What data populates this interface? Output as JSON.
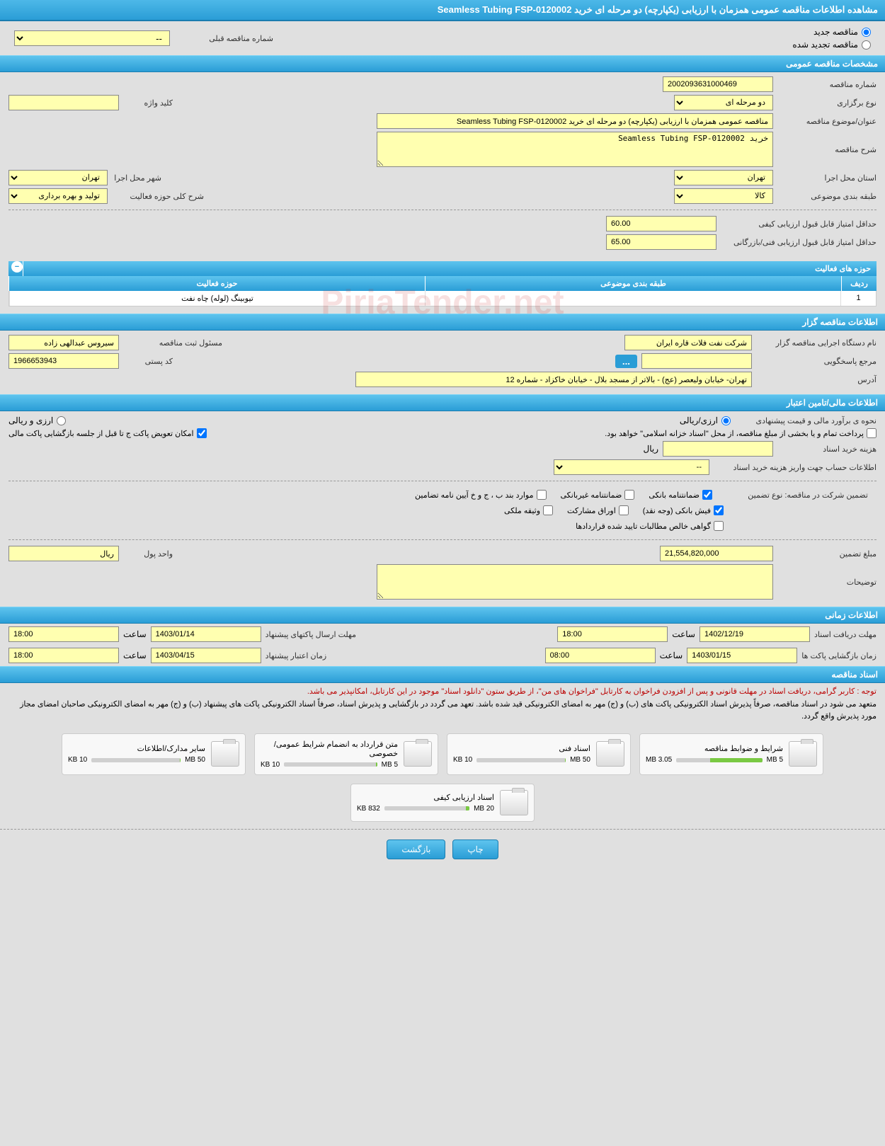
{
  "page_title": "مشاهده اطلاعات مناقصه عمومی همزمان با ارزیابی (یکپارچه) دو مرحله ای خرید Seamless Tubing FSP-0120002",
  "tender_status": {
    "new_label": "مناقصه جدید",
    "renewed_label": "مناقصه تجدید شده",
    "prev_number_label": "شماره مناقصه قبلی",
    "prev_number_value": "--"
  },
  "sections": {
    "general": "مشخصات مناقصه عمومی",
    "organizer": "اطلاعات مناقصه گزار",
    "financial": "اطلاعات مالی/تامین اعتبار",
    "timing": "اطلاعات زمانی",
    "documents": "اسناد مناقصه"
  },
  "general": {
    "tender_number_label": "شماره مناقصه",
    "tender_number": "2002093631000469",
    "hold_type_label": "نوع برگزاری",
    "hold_type": "دو مرحله ای",
    "keyword_label": "کلید واژه",
    "keyword": "",
    "title_label": "عنوان/موضوع مناقصه",
    "title": "مناقصه عمومی همزمان با ارزیابی (یکپارچه) دو مرحله ای خرید Seamless Tubing FSP-0120002",
    "desc_label": "شرح مناقصه",
    "desc": "خرید Seamless Tubing FSP-0120002",
    "province_label": "استان محل اجرا",
    "province": "تهران",
    "city_label": "شهر محل اجرا",
    "city": "تهران",
    "category_label": "طبقه بندی موضوعی",
    "category": "کالا",
    "scope_label": "شرح کلی حوزه فعالیت",
    "scope": "تولید و بهره برداری",
    "min_quality_label": "حداقل امتیاز قابل قبول ارزیابی کیفی",
    "min_quality": "60.00",
    "min_tech_label": "حداقل امتیاز قابل قبول ارزیابی فنی/بازرگانی",
    "min_tech": "65.00"
  },
  "activity_table": {
    "title": "حوزه های فعالیت",
    "col_idx": "ردیف",
    "col_cat": "طبقه بندی موضوعی",
    "col_act": "حوزه فعالیت",
    "rows": [
      {
        "idx": "1",
        "cat": "",
        "act": "تیوبینگ (لوله) چاه نفت"
      }
    ]
  },
  "organizer": {
    "name_label": "نام دستگاه اجرایی مناقصه گزار",
    "name": "شرکت نفت فلات قاره ایران",
    "registrar_label": "مسئول ثبت مناقصه",
    "registrar": "سیروس عبدالهی زاده",
    "contact_label": "مرجع پاسخگویی",
    "contact": "",
    "postal_label": "کد پستی",
    "postal": "1966653943",
    "address_label": "آدرس",
    "address": "تهران- خیابان ولیعصر (عج) - بالاتر از مسجد بلال - خیابان خاکزاد - شماره 12"
  },
  "financial": {
    "estimate_label": "نحوه ی برآورد مالی و قیمت پیشنهادی",
    "opt_rial": "ارزی/ریالی",
    "opt_both": "ارزی و ریالی",
    "payment_note": "پرداخت تمام و یا بخشی از مبلغ مناقصه، از محل \"اسناد خزانه اسلامی\" خواهد بود.",
    "swap_note": "امکان تعویض پاکت ج تا قبل از جلسه بازگشایی پاکت مالی",
    "doc_cost_label": "هزینه خرید اسناد",
    "doc_cost": "",
    "currency": "ریال",
    "account_label": "اطلاعات حساب جهت واریز هزینه خرید اسناد",
    "account": "--",
    "guarantee_label": "تضمین شرکت در مناقصه:    نوع تضمین",
    "g_bank": "ضمانتنامه بانکی",
    "g_nonbank": "ضمانتنامه غیربانکی",
    "g_cases": "موارد بند ب ، ج و خ آیین نامه تضامین",
    "g_cash": "فیش بانکی (وجه نقد)",
    "g_bonds": "اوراق مشارکت",
    "g_property": "وثیقه ملکی",
    "g_contracts": "گواهی خالص مطالبات تایید شده قراردادها",
    "amount_label": "مبلغ تضمین",
    "amount": "21,554,820,000",
    "unit_label": "واحد پول",
    "unit": "ریال",
    "notes_label": "توضیحات",
    "notes": ""
  },
  "timing": {
    "receive_deadline_label": "مهلت دریافت اسناد",
    "receive_deadline_date": "1402/12/19",
    "receive_deadline_time": "18:00",
    "send_deadline_label": "مهلت ارسال پاکتهای پیشنهاد",
    "send_deadline_date": "1403/01/14",
    "send_deadline_time": "18:00",
    "open_label": "زمان بازگشایی پاکت ها",
    "open_date": "1403/01/15",
    "open_time": "08:00",
    "validity_label": "زمان اعتبار پیشنهاد",
    "validity_date": "1403/04/15",
    "validity_time": "18:00",
    "time_word": "ساعت"
  },
  "docs_notice": {
    "line1": "توجه : کاربر گرامی، دریافت اسناد در مهلت قانونی و پس از افزودن فراخوان به کارتابل \"فراخوان های من\"، از طریق ستون \"دانلود اسناد\" موجود در این کارتابل، امکانپذیر می باشد.",
    "line2": "متعهد می شود در اسناد مناقصه، صرفاً پذیرش اسناد الکترونیکی پاکت های (ب) و (ج) مهر به امضای الکترونیکی قید شده باشد. تعهد می گردد در بازگشایی و پذیرش اسناد، صرفاً اسناد الکترونیکی پاکت های پیشنهاد (ب) و (ج) مهر به امضای الکترونیکی صاحبان امضای مجاز مورد پذیرش واقع گردد."
  },
  "documents": [
    {
      "title": "شرایط و ضوابط مناقصه",
      "used": "3.05 MB",
      "total": "5 MB",
      "pct": 61
    },
    {
      "title": "اسناد فنی",
      "used": "10 KB",
      "total": "50 MB",
      "pct": 1
    },
    {
      "title": "متن قرارداد به انضمام شرایط عمومی/خصوصی",
      "used": "10 KB",
      "total": "5 MB",
      "pct": 1
    },
    {
      "title": "سایر مدارک/اطلاعات",
      "used": "10 KB",
      "total": "50 MB",
      "pct": 1
    },
    {
      "title": "اسناد ارزیابی کیفی",
      "used": "832 KB",
      "total": "20 MB",
      "pct": 4
    }
  ],
  "buttons": {
    "print": "چاپ",
    "back": "بازگشت"
  },
  "watermark": "PiriaTender.net",
  "colors": {
    "header_bg": "#2a9dd6",
    "field_bg": "#ffffb0",
    "progress_fill": "#7ac943",
    "notice_red": "#b00000"
  }
}
